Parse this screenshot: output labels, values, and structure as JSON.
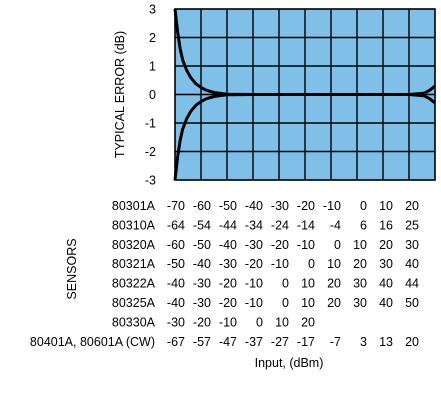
{
  "chart_data": {
    "type": "line",
    "ylabel": "TYPICAL ERROR (dB)",
    "xlabel": "Input, (dBm)",
    "ylim": [
      -3,
      3
    ],
    "yticks": [
      "3",
      "2",
      "1",
      "0",
      "-1",
      "-2",
      "-3"
    ],
    "grid": true,
    "background_color": "#7fbfe8",
    "line_color": "#000000",
    "columns": 10,
    "series": [
      {
        "x": [
          0,
          0.05,
          0.1,
          0.2,
          0.3,
          0.45,
          0.6,
          0.8,
          1,
          1.2,
          1.5,
          2,
          3,
          4,
          5,
          6,
          7,
          8,
          9,
          9.6,
          9.8,
          10
        ],
        "y": [
          3,
          2.6,
          2.2,
          1.6,
          1.2,
          0.85,
          0.6,
          0.38,
          0.25,
          0.15,
          0.07,
          0.01,
          0,
          0,
          0,
          0,
          0,
          0,
          0,
          0.05,
          0.15,
          0.3
        ]
      },
      {
        "x": [
          0,
          0.05,
          0.1,
          0.2,
          0.3,
          0.45,
          0.6,
          0.8,
          1,
          1.2,
          1.5,
          2,
          3,
          4,
          5,
          6,
          7,
          8,
          9,
          9.6,
          9.8,
          10
        ],
        "y": [
          -3,
          -2.6,
          -2.2,
          -1.6,
          -1.2,
          -0.85,
          -0.6,
          -0.38,
          -0.25,
          -0.15,
          -0.07,
          -0.01,
          0,
          0,
          0,
          0,
          0,
          0,
          0,
          -0.05,
          -0.15,
          -0.3
        ]
      }
    ],
    "sensors_label": "SENSORS",
    "sensors": [
      {
        "name": "80301A",
        "values": [
          "-70",
          "-60",
          "-50",
          "-40",
          "-30",
          "-20",
          "-10",
          "0",
          "10",
          "20"
        ]
      },
      {
        "name": "80310A",
        "values": [
          "-64",
          "-54",
          "-44",
          "-34",
          "-24",
          "-14",
          "-4",
          "6",
          "16",
          "25"
        ]
      },
      {
        "name": "80320A",
        "values": [
          "-60",
          "-50",
          "-40",
          "-30",
          "-20",
          "-10",
          "0",
          "10",
          "20",
          "30"
        ]
      },
      {
        "name": "80321A",
        "values": [
          "-50",
          "-40",
          "-30",
          "-20",
          "-10",
          "0",
          "10",
          "20",
          "30",
          "40"
        ]
      },
      {
        "name": "80322A",
        "values": [
          "-40",
          "-30",
          "-20",
          "-10",
          "0",
          "10",
          "20",
          "30",
          "40",
          "44"
        ]
      },
      {
        "name": "80325A",
        "values": [
          "-40",
          "-30",
          "-20",
          "-10",
          "0",
          "10",
          "20",
          "30",
          "40",
          "50"
        ]
      },
      {
        "name": "80330A",
        "values": [
          "-30",
          "-20",
          "-10",
          "0",
          "10",
          "20",
          "",
          "",
          "",
          ""
        ]
      },
      {
        "name": "80401A, 80601A (CW)",
        "values": [
          "-67",
          "-57",
          "-47",
          "-37",
          "-27",
          "-17",
          "-7",
          "3",
          "13",
          "20"
        ]
      }
    ]
  }
}
